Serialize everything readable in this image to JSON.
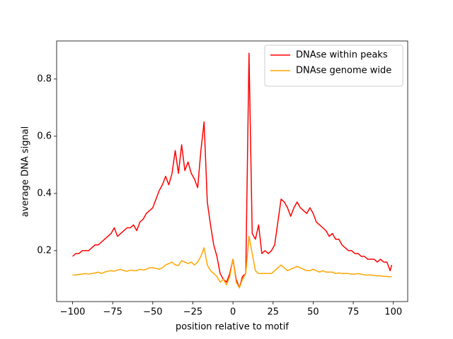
{
  "chart_data": {
    "type": "line",
    "xlabel": "position relative to motif",
    "ylabel": "average DNA signal",
    "x": [
      -100,
      -98,
      -96,
      -94,
      -92,
      -90,
      -88,
      -86,
      -84,
      -82,
      -80,
      -78,
      -76,
      -74,
      -72,
      -70,
      -68,
      -66,
      -64,
      -62,
      -60,
      -58,
      -56,
      -54,
      -52,
      -50,
      -48,
      -46,
      -44,
      -42,
      -40,
      -38,
      -36,
      -34,
      -32,
      -30,
      -28,
      -26,
      -24,
      -22,
      -20,
      -18,
      -16,
      -14,
      -12,
      -10,
      -8,
      -6,
      -4,
      -2,
      0,
      2,
      4,
      6,
      8,
      10,
      12,
      14,
      16,
      18,
      20,
      22,
      24,
      26,
      28,
      30,
      32,
      34,
      36,
      38,
      40,
      42,
      44,
      46,
      48,
      50,
      52,
      54,
      56,
      58,
      60,
      62,
      64,
      66,
      68,
      70,
      72,
      74,
      76,
      78,
      80,
      82,
      84,
      86,
      88,
      90,
      92,
      94,
      96,
      98,
      99
    ],
    "series": [
      {
        "name": "DNAse within peaks",
        "color": "#ff0000",
        "values": [
          0.18,
          0.19,
          0.19,
          0.2,
          0.2,
          0.2,
          0.21,
          0.22,
          0.22,
          0.23,
          0.24,
          0.25,
          0.26,
          0.28,
          0.25,
          0.26,
          0.27,
          0.28,
          0.28,
          0.29,
          0.27,
          0.3,
          0.31,
          0.33,
          0.34,
          0.35,
          0.38,
          0.41,
          0.43,
          0.46,
          0.43,
          0.47,
          0.55,
          0.47,
          0.57,
          0.48,
          0.51,
          0.47,
          0.45,
          0.42,
          0.55,
          0.65,
          0.37,
          0.29,
          0.22,
          0.18,
          0.12,
          0.1,
          0.09,
          0.12,
          0.17,
          0.1,
          0.07,
          0.11,
          0.12,
          0.89,
          0.26,
          0.24,
          0.29,
          0.19,
          0.2,
          0.19,
          0.2,
          0.22,
          0.3,
          0.38,
          0.37,
          0.35,
          0.32,
          0.35,
          0.37,
          0.35,
          0.34,
          0.33,
          0.35,
          0.33,
          0.3,
          0.29,
          0.28,
          0.27,
          0.25,
          0.26,
          0.24,
          0.24,
          0.22,
          0.21,
          0.2,
          0.2,
          0.19,
          0.19,
          0.18,
          0.18,
          0.17,
          0.17,
          0.17,
          0.16,
          0.17,
          0.16,
          0.16,
          0.13,
          0.15
        ]
      },
      {
        "name": "DNAse genome wide",
        "color": "#ffa500",
        "values": [
          0.115,
          0.115,
          0.117,
          0.118,
          0.12,
          0.118,
          0.12,
          0.122,
          0.125,
          0.12,
          0.125,
          0.128,
          0.13,
          0.128,
          0.132,
          0.135,
          0.13,
          0.128,
          0.132,
          0.13,
          0.13,
          0.135,
          0.132,
          0.135,
          0.14,
          0.14,
          0.138,
          0.135,
          0.14,
          0.15,
          0.155,
          0.16,
          0.15,
          0.148,
          0.165,
          0.16,
          0.155,
          0.16,
          0.15,
          0.16,
          0.18,
          0.21,
          0.15,
          0.13,
          0.12,
          0.11,
          0.09,
          0.1,
          0.08,
          0.11,
          0.17,
          0.09,
          0.07,
          0.1,
          0.12,
          0.25,
          0.19,
          0.13,
          0.12,
          0.12,
          0.12,
          0.12,
          0.12,
          0.13,
          0.14,
          0.15,
          0.14,
          0.13,
          0.135,
          0.14,
          0.145,
          0.14,
          0.135,
          0.13,
          0.13,
          0.135,
          0.13,
          0.125,
          0.13,
          0.125,
          0.125,
          0.125,
          0.12,
          0.122,
          0.12,
          0.12,
          0.12,
          0.118,
          0.118,
          0.12,
          0.118,
          0.115,
          0.115,
          0.115,
          0.113,
          0.112,
          0.112,
          0.11,
          0.11,
          0.108,
          0.11
        ]
      }
    ],
    "xlim": [
      -109.95,
      108.95
    ],
    "ylim": [
      0.022,
      0.933
    ],
    "xticks": [
      {
        "value": -100,
        "label": "−100"
      },
      {
        "value": -75,
        "label": "−75"
      },
      {
        "value": -50,
        "label": "−50"
      },
      {
        "value": -25,
        "label": "−25"
      },
      0,
      25,
      50,
      75,
      100
    ],
    "yticks": [
      0.2,
      0.4,
      0.6,
      0.8
    ],
    "legend": "upper right"
  }
}
